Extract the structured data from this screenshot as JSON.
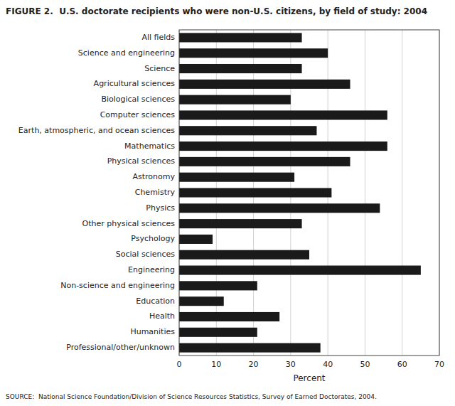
{
  "chart_data": {
    "type": "bar",
    "orientation": "horizontal",
    "title": "FIGURE 2.  U.S. doctorate recipients who were non-U.S. citizens, by field of study: 2004",
    "annotations": [
      "SOURCE:  National Science Foundation/Division of Science Resources Statistics, Survey of Earned Doctorates, 2004."
    ],
    "xlabel": "Percent",
    "categories": [
      "Professional/other/unknown",
      "Humanities",
      "Health",
      "Education",
      "Non-science and engineering",
      "Engineering",
      "Social sciences",
      "Psychology",
      "Other physical sciences",
      "Physics",
      "Chemistry",
      "Astronomy",
      "Physical sciences",
      "Mathematics",
      "Earth, atmospheric, and ocean sciences",
      "Computer sciences",
      "Biological sciences",
      "Agricultural sciences",
      "Science",
      "Science and engineering",
      "All fields"
    ],
    "values": [
      38,
      21,
      27,
      12,
      21,
      65,
      35,
      9,
      33,
      54,
      41,
      31,
      46,
      56,
      37,
      56,
      30,
      46,
      33,
      40,
      33
    ],
    "color": "#1a1a1a",
    "xlim": [
      0,
      70
    ],
    "xticks": [
      0,
      10,
      20,
      30,
      40,
      50,
      60,
      70
    ],
    "grid": true
  }
}
